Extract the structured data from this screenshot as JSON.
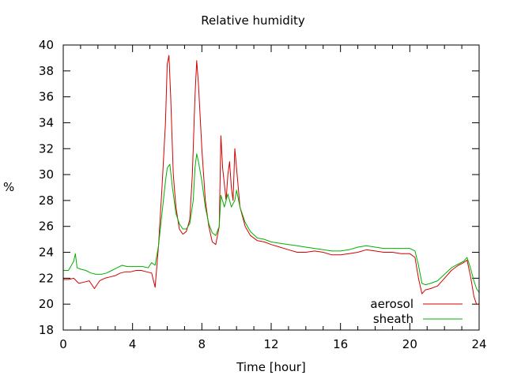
{
  "chart_data": {
    "type": "line",
    "title": "Relative humidity",
    "xlabel": "Time [hour]",
    "ylabel": "%",
    "xlim": [
      0,
      24
    ],
    "ylim": [
      18,
      40
    ],
    "xticks": [
      0,
      4,
      8,
      12,
      16,
      20,
      24
    ],
    "yticks": [
      18,
      20,
      22,
      24,
      26,
      28,
      30,
      32,
      34,
      36,
      38,
      40
    ],
    "legend_position": "bottom-right",
    "grid": false,
    "series": [
      {
        "name": "aerosol",
        "color": "#d40000",
        "points": [
          [
            0,
            21.9
          ],
          [
            0.3,
            21.9
          ],
          [
            0.6,
            22.0
          ],
          [
            0.9,
            21.6
          ],
          [
            1.2,
            21.7
          ],
          [
            1.5,
            21.8
          ],
          [
            1.8,
            21.2
          ],
          [
            2.1,
            21.8
          ],
          [
            2.4,
            22.0
          ],
          [
            2.7,
            22.1
          ],
          [
            3.0,
            22.2
          ],
          [
            3.3,
            22.4
          ],
          [
            3.6,
            22.5
          ],
          [
            3.9,
            22.5
          ],
          [
            4.2,
            22.6
          ],
          [
            4.5,
            22.6
          ],
          [
            4.8,
            22.5
          ],
          [
            5.1,
            22.4
          ],
          [
            5.3,
            21.3
          ],
          [
            5.5,
            24.5
          ],
          [
            5.7,
            29.0
          ],
          [
            5.9,
            34.0
          ],
          [
            6.0,
            38.5
          ],
          [
            6.1,
            39.2
          ],
          [
            6.2,
            36.0
          ],
          [
            6.35,
            30.0
          ],
          [
            6.5,
            27.5
          ],
          [
            6.7,
            25.8
          ],
          [
            6.9,
            25.4
          ],
          [
            7.1,
            25.6
          ],
          [
            7.3,
            26.5
          ],
          [
            7.45,
            30.0
          ],
          [
            7.6,
            36.0
          ],
          [
            7.7,
            38.8
          ],
          [
            7.8,
            37.0
          ],
          [
            8.0,
            32.0
          ],
          [
            8.2,
            28.0
          ],
          [
            8.4,
            26.0
          ],
          [
            8.6,
            24.8
          ],
          [
            8.8,
            24.6
          ],
          [
            9.0,
            26.0
          ],
          [
            9.1,
            33.0
          ],
          [
            9.2,
            30.5
          ],
          [
            9.4,
            28.0
          ],
          [
            9.5,
            30.0
          ],
          [
            9.6,
            31.0
          ],
          [
            9.7,
            29.0
          ],
          [
            9.8,
            28.0
          ],
          [
            9.9,
            32.0
          ],
          [
            10.0,
            30.5
          ],
          [
            10.2,
            27.5
          ],
          [
            10.5,
            26.0
          ],
          [
            10.8,
            25.3
          ],
          [
            11.2,
            24.9
          ],
          [
            11.6,
            24.8
          ],
          [
            12,
            24.6
          ],
          [
            12.5,
            24.4
          ],
          [
            13,
            24.2
          ],
          [
            13.5,
            24.0
          ],
          [
            14,
            24.0
          ],
          [
            14.5,
            24.1
          ],
          [
            15,
            24.0
          ],
          [
            15.5,
            23.8
          ],
          [
            16,
            23.8
          ],
          [
            16.5,
            23.9
          ],
          [
            17,
            24.0
          ],
          [
            17.5,
            24.2
          ],
          [
            18,
            24.1
          ],
          [
            18.5,
            24.0
          ],
          [
            19,
            24.0
          ],
          [
            19.5,
            23.9
          ],
          [
            20,
            23.9
          ],
          [
            20.3,
            23.6
          ],
          [
            20.5,
            22.0
          ],
          [
            20.7,
            20.8
          ],
          [
            20.9,
            21.1
          ],
          [
            21.2,
            21.2
          ],
          [
            21.6,
            21.4
          ],
          [
            22,
            22.0
          ],
          [
            22.4,
            22.6
          ],
          [
            22.8,
            23.0
          ],
          [
            23.1,
            23.2
          ],
          [
            23.3,
            23.4
          ],
          [
            23.5,
            22.2
          ],
          [
            23.7,
            20.6
          ],
          [
            23.85,
            20.0
          ],
          [
            24,
            20.0
          ]
        ]
      },
      {
        "name": "sheath",
        "color": "#00b000",
        "points": [
          [
            0,
            22.6
          ],
          [
            0.3,
            22.6
          ],
          [
            0.6,
            23.3
          ],
          [
            0.7,
            23.9
          ],
          [
            0.8,
            22.8
          ],
          [
            1.0,
            22.7
          ],
          [
            1.3,
            22.6
          ],
          [
            1.6,
            22.4
          ],
          [
            1.9,
            22.3
          ],
          [
            2.2,
            22.3
          ],
          [
            2.5,
            22.4
          ],
          [
            2.8,
            22.6
          ],
          [
            3.1,
            22.8
          ],
          [
            3.4,
            23.0
          ],
          [
            3.7,
            22.9
          ],
          [
            4.0,
            22.9
          ],
          [
            4.3,
            22.9
          ],
          [
            4.6,
            22.9
          ],
          [
            4.9,
            22.8
          ],
          [
            5.1,
            23.2
          ],
          [
            5.3,
            23.0
          ],
          [
            5.5,
            24.5
          ],
          [
            5.7,
            27.0
          ],
          [
            5.9,
            29.5
          ],
          [
            6.0,
            30.5
          ],
          [
            6.15,
            30.8
          ],
          [
            6.3,
            29.0
          ],
          [
            6.5,
            27.0
          ],
          [
            6.7,
            26.2
          ],
          [
            6.9,
            25.8
          ],
          [
            7.1,
            25.8
          ],
          [
            7.3,
            26.2
          ],
          [
            7.5,
            28.0
          ],
          [
            7.6,
            30.5
          ],
          [
            7.7,
            31.6
          ],
          [
            7.8,
            31.0
          ],
          [
            8.0,
            29.5
          ],
          [
            8.2,
            27.5
          ],
          [
            8.4,
            26.2
          ],
          [
            8.6,
            25.5
          ],
          [
            8.8,
            25.3
          ],
          [
            9.0,
            26.0
          ],
          [
            9.1,
            28.4
          ],
          [
            9.3,
            27.5
          ],
          [
            9.5,
            28.5
          ],
          [
            9.7,
            27.5
          ],
          [
            9.9,
            28.0
          ],
          [
            10.0,
            28.8
          ],
          [
            10.2,
            27.5
          ],
          [
            10.5,
            26.3
          ],
          [
            10.8,
            25.6
          ],
          [
            11.2,
            25.1
          ],
          [
            11.6,
            25.0
          ],
          [
            12,
            24.8
          ],
          [
            12.5,
            24.7
          ],
          [
            13,
            24.6
          ],
          [
            13.5,
            24.5
          ],
          [
            14,
            24.4
          ],
          [
            14.5,
            24.3
          ],
          [
            15,
            24.2
          ],
          [
            15.5,
            24.1
          ],
          [
            16,
            24.1
          ],
          [
            16.5,
            24.2
          ],
          [
            17,
            24.4
          ],
          [
            17.5,
            24.5
          ],
          [
            18,
            24.4
          ],
          [
            18.5,
            24.3
          ],
          [
            19,
            24.3
          ],
          [
            19.5,
            24.3
          ],
          [
            20,
            24.3
          ],
          [
            20.3,
            24.1
          ],
          [
            20.5,
            23.0
          ],
          [
            20.7,
            21.6
          ],
          [
            20.9,
            21.5
          ],
          [
            21.2,
            21.6
          ],
          [
            21.6,
            21.8
          ],
          [
            22,
            22.3
          ],
          [
            22.4,
            22.8
          ],
          [
            22.8,
            23.1
          ],
          [
            23.1,
            23.3
          ],
          [
            23.3,
            23.6
          ],
          [
            23.5,
            22.8
          ],
          [
            23.7,
            21.8
          ],
          [
            23.85,
            21.2
          ],
          [
            24,
            20.9
          ]
        ]
      }
    ]
  }
}
